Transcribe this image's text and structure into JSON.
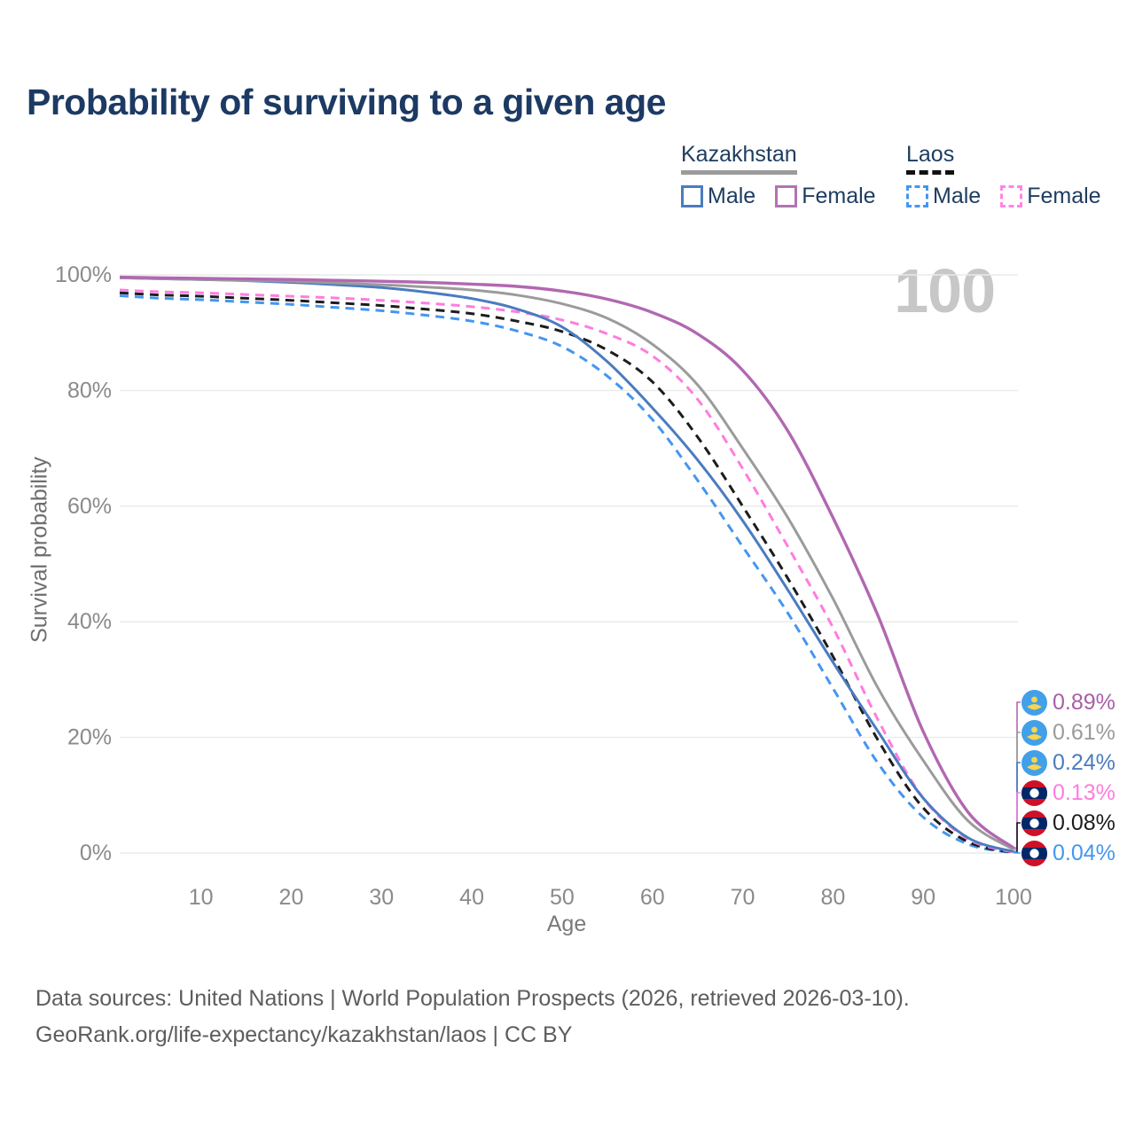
{
  "title": "Probability of surviving to a given age",
  "watermark": "100",
  "legend": {
    "groups": [
      {
        "label": "Kazakhstan",
        "line_style": "solid",
        "underline_color": "#9b9b9b",
        "items": [
          {
            "label": "Male",
            "color": "#4a7cc0",
            "dashed": false
          },
          {
            "label": "Female",
            "color": "#b273b2",
            "dashed": false
          }
        ]
      },
      {
        "label": "Laos",
        "line_style": "dashed",
        "underline_color": "#111111",
        "items": [
          {
            "label": "Male",
            "color": "#4496f0",
            "dashed": true
          },
          {
            "label": "Female",
            "color": "#ff85e3",
            "dashed": true
          }
        ]
      }
    ]
  },
  "chart_data": {
    "type": "line",
    "title": "Probability of surviving to a given age",
    "xlabel": "Age",
    "ylabel": "Survival probability",
    "xlim": [
      1,
      100
    ],
    "ylim": [
      0,
      100
    ],
    "x_ticks": [
      10,
      20,
      30,
      40,
      50,
      60,
      70,
      80,
      90,
      100
    ],
    "y_ticks_pct": [
      0,
      20,
      40,
      60,
      80,
      100
    ],
    "grid": "horizontal",
    "legend_position": "top-right",
    "series": [
      {
        "name": "Kazakhstan Female",
        "country": "Kazakhstan",
        "sex": "Female",
        "color": "#b168b1",
        "dashed": false,
        "end_label": "0.89%",
        "end_label_color": "#a85fa8",
        "flag": "kazakhstan",
        "points": [
          [
            1,
            99.6
          ],
          [
            5,
            99.5
          ],
          [
            10,
            99.4
          ],
          [
            15,
            99.3
          ],
          [
            20,
            99.2
          ],
          [
            25,
            99.05
          ],
          [
            30,
            98.9
          ],
          [
            35,
            98.7
          ],
          [
            40,
            98.4
          ],
          [
            45,
            98.0
          ],
          [
            50,
            97.2
          ],
          [
            55,
            95.8
          ],
          [
            60,
            93.5
          ],
          [
            65,
            89.8
          ],
          [
            70,
            83.5
          ],
          [
            75,
            73.0
          ],
          [
            80,
            58.0
          ],
          [
            85,
            41.0
          ],
          [
            90,
            21.0
          ],
          [
            95,
            7.0
          ],
          [
            100,
            0.89
          ]
        ]
      },
      {
        "name": "Kazakhstan Average",
        "country": "Kazakhstan",
        "sex": "Both",
        "color": "#9b9b9b",
        "dashed": false,
        "end_label": "0.61%",
        "end_label_color": "#9b9b9b",
        "flag": "kazakhstan",
        "points": [
          [
            1,
            99.5
          ],
          [
            5,
            99.35
          ],
          [
            10,
            99.2
          ],
          [
            15,
            99.05
          ],
          [
            20,
            98.9
          ],
          [
            25,
            98.6
          ],
          [
            30,
            98.3
          ],
          [
            35,
            97.9
          ],
          [
            40,
            97.4
          ],
          [
            45,
            96.5
          ],
          [
            50,
            95.0
          ],
          [
            55,
            92.5
          ],
          [
            60,
            88.0
          ],
          [
            65,
            81.0
          ],
          [
            70,
            70.0
          ],
          [
            75,
            58.0
          ],
          [
            80,
            44.0
          ],
          [
            85,
            28.5
          ],
          [
            90,
            16.0
          ],
          [
            95,
            5.5
          ],
          [
            100,
            0.61
          ]
        ]
      },
      {
        "name": "Kazakhstan Male",
        "country": "Kazakhstan",
        "sex": "Male",
        "color": "#4a7cc0",
        "dashed": false,
        "end_label": "0.24%",
        "end_label_color": "#4a7cc0",
        "flag": "kazakhstan",
        "points": [
          [
            1,
            99.5
          ],
          [
            5,
            99.35
          ],
          [
            10,
            99.2
          ],
          [
            15,
            99.0
          ],
          [
            20,
            98.7
          ],
          [
            25,
            98.3
          ],
          [
            30,
            97.8
          ],
          [
            35,
            97.0
          ],
          [
            40,
            95.9
          ],
          [
            45,
            94.1
          ],
          [
            50,
            91.0
          ],
          [
            55,
            85.0
          ],
          [
            60,
            77.0
          ],
          [
            65,
            68.0
          ],
          [
            70,
            57.5
          ],
          [
            75,
            45.5
          ],
          [
            80,
            33.0
          ],
          [
            85,
            21.0
          ],
          [
            90,
            9.5
          ],
          [
            95,
            2.6
          ],
          [
            100,
            0.24
          ]
        ]
      },
      {
        "name": "Laos Female",
        "country": "Laos",
        "sex": "Female",
        "color": "#ff7ce0",
        "dashed": true,
        "end_label": "0.13%",
        "end_label_color": "#ff7ce0",
        "flag": "laos",
        "points": [
          [
            1,
            97.4
          ],
          [
            5,
            97.1
          ],
          [
            10,
            96.9
          ],
          [
            15,
            96.6
          ],
          [
            20,
            96.3
          ],
          [
            25,
            96.0
          ],
          [
            30,
            95.6
          ],
          [
            35,
            95.1
          ],
          [
            40,
            94.5
          ],
          [
            45,
            93.6
          ],
          [
            50,
            92.2
          ],
          [
            55,
            89.8
          ],
          [
            60,
            86.0
          ],
          [
            65,
            78.5
          ],
          [
            70,
            66.5
          ],
          [
            75,
            53.0
          ],
          [
            80,
            39.0
          ],
          [
            85,
            23.0
          ],
          [
            90,
            9.5
          ],
          [
            95,
            2.4
          ],
          [
            100,
            0.13
          ]
        ]
      },
      {
        "name": "Laos Average",
        "country": "Laos",
        "sex": "Both",
        "color": "#1c1c1c",
        "dashed": true,
        "end_label": "0.08%",
        "end_label_color": "#1c1c1c",
        "flag": "laos",
        "points": [
          [
            1,
            96.9
          ],
          [
            5,
            96.55
          ],
          [
            10,
            96.3
          ],
          [
            15,
            95.95
          ],
          [
            20,
            95.6
          ],
          [
            25,
            95.15
          ],
          [
            30,
            94.7
          ],
          [
            35,
            94.05
          ],
          [
            40,
            93.3
          ],
          [
            45,
            92.0
          ],
          [
            50,
            90.2
          ],
          [
            55,
            87.0
          ],
          [
            60,
            81.5
          ],
          [
            65,
            72.0
          ],
          [
            70,
            60.0
          ],
          [
            75,
            47.5
          ],
          [
            80,
            34.0
          ],
          [
            85,
            19.5
          ],
          [
            90,
            7.8
          ],
          [
            95,
            1.9
          ],
          [
            100,
            0.08
          ]
        ]
      },
      {
        "name": "Laos Male",
        "country": "Laos",
        "sex": "Male",
        "color": "#4496f0",
        "dashed": true,
        "end_label": "0.04%",
        "end_label_color": "#4496f0",
        "flag": "laos",
        "points": [
          [
            1,
            96.4
          ],
          [
            5,
            96.0
          ],
          [
            10,
            95.7
          ],
          [
            15,
            95.3
          ],
          [
            20,
            94.9
          ],
          [
            25,
            94.35
          ],
          [
            30,
            93.8
          ],
          [
            35,
            93.0
          ],
          [
            40,
            92.0
          ],
          [
            45,
            90.3
          ],
          [
            50,
            87.6
          ],
          [
            55,
            82.5
          ],
          [
            60,
            75.0
          ],
          [
            65,
            64.5
          ],
          [
            70,
            53.0
          ],
          [
            75,
            41.5
          ],
          [
            80,
            28.5
          ],
          [
            85,
            15.5
          ],
          [
            90,
            6.2
          ],
          [
            95,
            1.5
          ],
          [
            100,
            0.04
          ]
        ]
      }
    ],
    "flag_colors": {
      "kazakhstan_blue": "#41a0e8",
      "kazakhstan_yellow": "#fcd34d",
      "laos_red": "#ce1126",
      "laos_blue": "#002868",
      "laos_white": "#ffffff"
    }
  },
  "footer": {
    "line1": "Data sources: United Nations | World Population Prospects (2026, retrieved 2026-03-10).",
    "line2": "GeoRank.org/life-expectancy/kazakhstan/laos | CC BY"
  }
}
